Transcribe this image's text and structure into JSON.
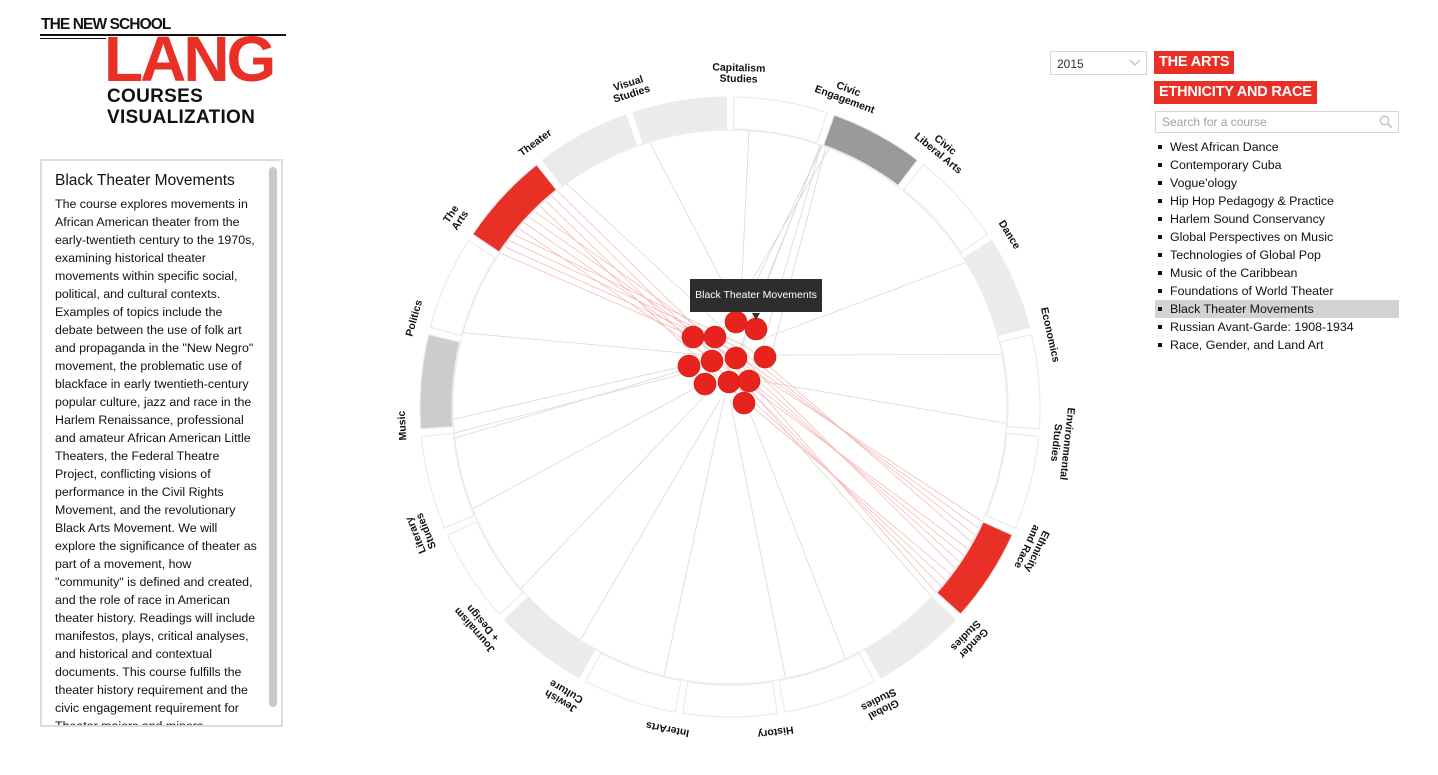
{
  "logo": {
    "school": "THE NEW SCHOOL",
    "name": "LANG",
    "subtitle_line1": "COURSES",
    "subtitle_line2": "VISUALIZATION"
  },
  "course": {
    "title": "Black Theater Movements",
    "description": "The course explores movements in African American theater from the early-twentieth century to the 1970s, examining historical theater movements within specific social, political, and cultural contexts. Examples of topics include the debate between the use of folk art and propaganda in the \"New Negro\" movement, the problematic use of blackface in early twentieth-century popular culture, jazz and race in the Harlem Renaissance, professional and amateur African American Little Theaters, the Federal Theatre Project, conflicting visions of performance in the Civil Rights Movement, and the revolutionary Black Arts Movement. We will explore the significance of theater as part of a movement, how \"community\" is defined and created, and the role of race in American theater history. Readings will include manifestos, plays, critical analyses, and historical and contextual documents. This course fulfills the theater history requirement and the civic engagement requirement for Theater majors and minors."
  },
  "controls": {
    "year": "2015",
    "selected_tags": [
      "THE ARTS",
      "ETHNICITY AND RACE"
    ],
    "search_placeholder": "Search for a course"
  },
  "courses": [
    "West African Dance",
    "Contemporary Cuba",
    "Vogue'ology",
    "Hip Hop Pedagogy & Practice",
    "Harlem Sound Conservancy",
    "Global Perspectives on Music",
    "Technologies of Global Pop",
    "Music of the Caribbean",
    "Foundations of World Theater",
    "Black Theater Movements",
    "Russian Avant-Garde: 1908-1934",
    "Race, Gender, and Land Art"
  ],
  "selected_course_index": 9,
  "tooltip": "Black Theater Movements",
  "colors": {
    "accent": "#e83027",
    "segment_light": "#ebebeb",
    "segment_medium": "#cccccc",
    "segment_dark": "#9a9a9a"
  },
  "chart_data": {
    "type": "chord",
    "segments": [
      {
        "lines": [
          "Capitalism",
          "Studies"
        ],
        "state": "none"
      },
      {
        "lines": [
          "Civic",
          "Engagement"
        ],
        "state": "dark"
      },
      {
        "lines": [
          "Civic",
          "Liberal Arts"
        ],
        "state": "none"
      },
      {
        "lines": [
          "Dance"
        ],
        "state": "light"
      },
      {
        "lines": [
          "Economics"
        ],
        "state": "none"
      },
      {
        "lines": [
          "Environmental",
          "Studies"
        ],
        "state": "none"
      },
      {
        "lines": [
          "Ethnicity",
          "and Race"
        ],
        "state": "selected"
      },
      {
        "lines": [
          "Gender",
          "Studies"
        ],
        "state": "light"
      },
      {
        "lines": [
          "Global",
          "Studies"
        ],
        "state": "none"
      },
      {
        "lines": [
          "History"
        ],
        "state": "none"
      },
      {
        "lines": [
          "InterArts"
        ],
        "state": "none"
      },
      {
        "lines": [
          "Jewish",
          "Culture"
        ],
        "state": "light"
      },
      {
        "lines": [
          "Journalism",
          "+ Design"
        ],
        "state": "none"
      },
      {
        "lines": [
          "Literary",
          "Studies"
        ],
        "state": "none"
      },
      {
        "lines": [
          "Music"
        ],
        "state": "medium"
      },
      {
        "lines": [
          "Politics"
        ],
        "state": "none"
      },
      {
        "lines": [
          "The",
          "Arts"
        ],
        "state": "selected"
      },
      {
        "lines": [
          "Theater"
        ],
        "state": "light"
      },
      {
        "lines": [
          "Visual",
          "Studies"
        ],
        "state": "light"
      }
    ],
    "course_nodes": 12
  }
}
